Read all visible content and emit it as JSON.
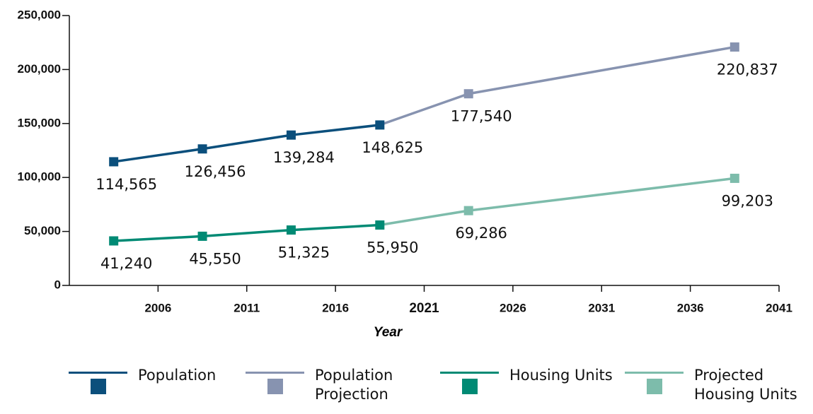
{
  "chart_data": {
    "type": "line",
    "x": [
      2003.5,
      2008.5,
      2013.5,
      2018.5,
      2023.5,
      2038.5
    ],
    "series": [
      {
        "name": "Population",
        "color": "#0b4f7c",
        "values": [
          114565,
          126456,
          139284,
          148625,
          null,
          null
        ],
        "value_labels": [
          "114,565",
          "126,456",
          "139,284",
          "148,625",
          null,
          null
        ]
      },
      {
        "name": "Population Projection",
        "color": "#8793b0",
        "values": [
          null,
          null,
          null,
          148625,
          177540,
          220837
        ],
        "value_labels": [
          null,
          null,
          null,
          null,
          "177,540",
          "220,837"
        ]
      },
      {
        "name": "Housing Units",
        "color": "#008a74",
        "values": [
          41240,
          45550,
          51325,
          55950,
          null,
          null
        ],
        "value_labels": [
          "41,240",
          "45,550",
          "51,325",
          "55,950",
          null,
          null
        ]
      },
      {
        "name": "Projected Housing Units",
        "color": "#7dbcab",
        "values": [
          null,
          null,
          null,
          55950,
          69286,
          99203
        ],
        "value_labels": [
          null,
          null,
          null,
          null,
          "69,286",
          "99,203"
        ]
      }
    ],
    "x_label": "Year",
    "xlim": [
      2001,
      2041
    ],
    "xticks": [
      2006,
      2011,
      2016,
      2021,
      2026,
      2031,
      2036,
      2041
    ],
    "bold_xtick": 2021,
    "ylim": [
      0,
      250000
    ],
    "yticks": [
      0,
      {
        "value": 50000,
        "label": "50,000"
      },
      {
        "value": 100000,
        "label": "100,000"
      },
      {
        "value": 150000,
        "label": "150,000"
      },
      {
        "value": 200000,
        "label": "200,000"
      },
      {
        "value": 250000,
        "label": "250,000"
      }
    ],
    "legend": "bottom"
  }
}
